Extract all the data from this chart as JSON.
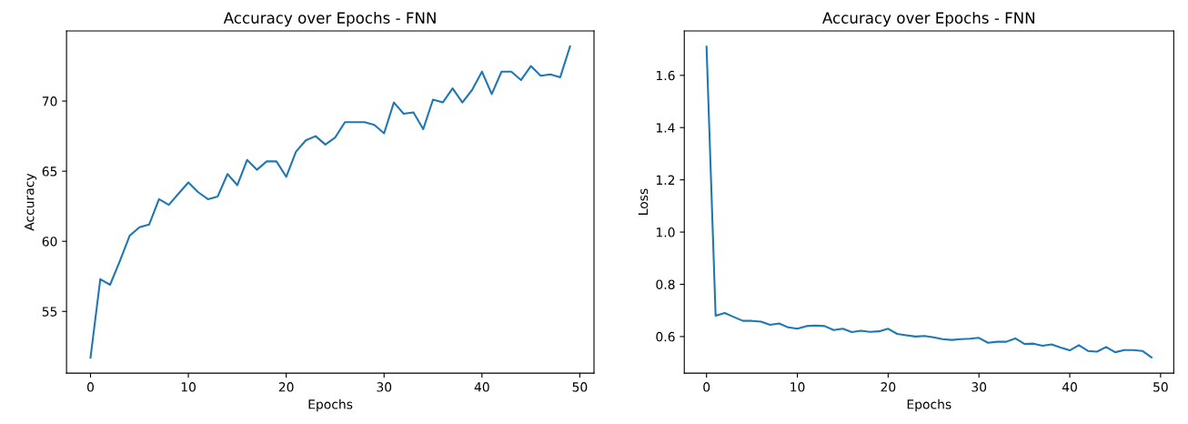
{
  "chart_data": [
    {
      "type": "line",
      "title": "Accuracy over Epochs - FNN",
      "xlabel": "Epochs",
      "ylabel": "Accuracy",
      "x": [
        0,
        1,
        2,
        3,
        4,
        5,
        6,
        7,
        8,
        9,
        10,
        11,
        12,
        13,
        14,
        15,
        16,
        17,
        18,
        19,
        20,
        21,
        22,
        23,
        24,
        25,
        26,
        27,
        28,
        29,
        30,
        31,
        32,
        33,
        34,
        35,
        36,
        37,
        38,
        39,
        40,
        41,
        42,
        43,
        44,
        45,
        46,
        47,
        48,
        49
      ],
      "series": [
        {
          "color": "#1f77b4",
          "values": [
            51.7,
            57.3,
            56.9,
            58.6,
            60.4,
            61.0,
            61.2,
            63.0,
            62.6,
            63.4,
            64.2,
            63.5,
            63.0,
            63.2,
            64.8,
            64.0,
            65.8,
            65.1,
            65.7,
            65.7,
            64.6,
            66.4,
            67.2,
            67.5,
            66.9,
            67.4,
            68.5,
            68.5,
            68.5,
            68.3,
            67.7,
            69.9,
            69.1,
            69.2,
            68.0,
            70.1,
            69.9,
            70.9,
            69.9,
            70.8,
            72.1,
            70.5,
            72.1,
            72.1,
            71.5,
            72.5,
            71.8,
            71.9,
            71.7,
            73.9
          ]
        }
      ],
      "xlim": [
        -2.45,
        51.45
      ],
      "xticks": [
        0,
        10,
        20,
        30,
        40,
        50
      ],
      "ylim": [
        50.6,
        75.0
      ],
      "yticks": [
        55,
        60,
        65,
        70
      ]
    },
    {
      "type": "line",
      "title": "Accuracy over Epochs - FNN",
      "xlabel": "Epochs",
      "ylabel": "Loss",
      "x": [
        0,
        1,
        2,
        3,
        4,
        5,
        6,
        7,
        8,
        9,
        10,
        11,
        12,
        13,
        14,
        15,
        16,
        17,
        18,
        19,
        20,
        21,
        22,
        23,
        24,
        25,
        26,
        27,
        28,
        29,
        30,
        31,
        32,
        33,
        34,
        35,
        36,
        37,
        38,
        39,
        40,
        41,
        42,
        43,
        44,
        45,
        46,
        47,
        48,
        49
      ],
      "series": [
        {
          "color": "#1f77b4",
          "values": [
            1.71,
            0.68,
            0.69,
            0.675,
            0.66,
            0.66,
            0.657,
            0.645,
            0.65,
            0.635,
            0.63,
            0.64,
            0.642,
            0.64,
            0.625,
            0.63,
            0.617,
            0.622,
            0.618,
            0.62,
            0.63,
            0.61,
            0.605,
            0.6,
            0.602,
            0.597,
            0.59,
            0.587,
            0.59,
            0.592,
            0.595,
            0.576,
            0.58,
            0.58,
            0.593,
            0.572,
            0.573,
            0.565,
            0.57,
            0.558,
            0.547,
            0.567,
            0.545,
            0.542,
            0.56,
            0.54,
            0.548,
            0.548,
            0.545,
            0.52
          ]
        }
      ],
      "xlim": [
        -2.45,
        51.45
      ],
      "xticks": [
        0,
        10,
        20,
        30,
        40,
        50
      ],
      "ylim": [
        0.46,
        1.77
      ],
      "yticks": [
        {
          "value": 0.6,
          "label": "0.6"
        },
        {
          "value": 0.8,
          "label": "0.8"
        },
        {
          "value": 1.0,
          "label": "1.0"
        },
        {
          "value": 1.2,
          "label": "1.2"
        },
        {
          "value": 1.4,
          "label": "1.4"
        },
        {
          "value": 1.6,
          "label": "1.6"
        }
      ]
    }
  ]
}
